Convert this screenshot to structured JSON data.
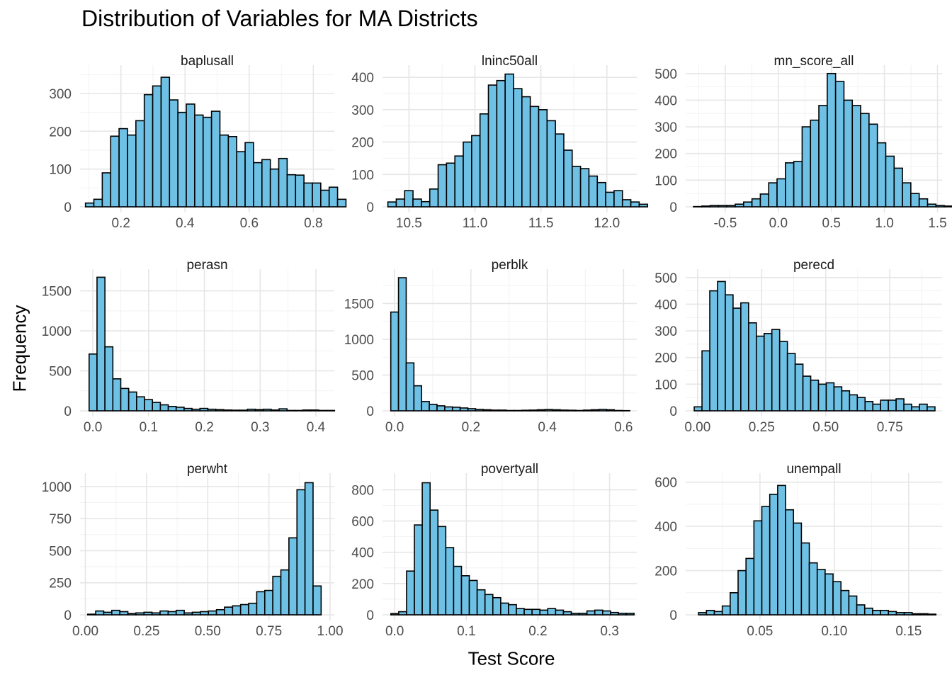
{
  "page": {
    "title": "Distribution of Variables for MA Districts",
    "xlabel": "Test Score",
    "ylabel": "Frequency"
  },
  "colors": {
    "bar_fill": "#6EC1E4",
    "bar_stroke": "#000000",
    "grid_major": "#E6E6E6",
    "grid_minor": "#F2F2F2"
  },
  "chart_data": [
    {
      "type": "bar",
      "title": "baplusall",
      "xlim": [
        0.077,
        0.861
      ],
      "ylim": [
        0,
        360
      ],
      "xticks": [
        0.2,
        0.4,
        0.6,
        0.8
      ],
      "xtick_labels": [
        "0.2",
        "0.4",
        "0.6",
        "0.8"
      ],
      "yticks": [
        0,
        100,
        200,
        300
      ],
      "ytick_labels": [
        "0",
        "100",
        "200",
        "300"
      ],
      "bin_start": 0.0895,
      "bin_width": 0.0262,
      "values": [
        10,
        20,
        90,
        187,
        207,
        190,
        228,
        297,
        320,
        343,
        283,
        250,
        272,
        243,
        237,
        253,
        190,
        186,
        146,
        170,
        117,
        125,
        100,
        128,
        85,
        84,
        63,
        63,
        44,
        52,
        20
      ]
    },
    {
      "type": "bar",
      "title": "lninc50all",
      "xlim": [
        10.31,
        12.216
      ],
      "ylim": [
        0,
        420
      ],
      "xticks": [
        10.5,
        11.0,
        11.5,
        12.0
      ],
      "xtick_labels": [
        "10.5",
        "11.0",
        "11.5",
        "12.0"
      ],
      "yticks": [
        0,
        100,
        200,
        300,
        400
      ],
      "ytick_labels": [
        "0",
        "100",
        "200",
        "300",
        "400"
      ],
      "bin_start": 10.34,
      "bin_width": 0.0635,
      "values": [
        15,
        24,
        50,
        24,
        16,
        55,
        130,
        135,
        157,
        200,
        220,
        287,
        376,
        390,
        410,
        365,
        340,
        310,
        300,
        266,
        225,
        175,
        125,
        118,
        95,
        75,
        45,
        50,
        22,
        15,
        8
      ]
    },
    {
      "type": "bar",
      "title": "mn_score_all",
      "xlim": [
        -0.86,
        1.53
      ],
      "ylim": [
        0,
        510
      ],
      "xticks": [
        -0.5,
        0.0,
        0.5,
        1.0,
        1.5
      ],
      "xtick_labels": [
        "-0.5",
        "0.0",
        "0.5",
        "1.0",
        "1.5"
      ],
      "yticks": [
        0,
        100,
        200,
        300,
        400,
        500
      ],
      "ytick_labels": [
        "0",
        "100",
        "200",
        "300",
        "400",
        "500"
      ],
      "bin_start": -0.8,
      "bin_width": 0.0788,
      "values": [
        1,
        3,
        5,
        5,
        5,
        10,
        18,
        30,
        48,
        90,
        105,
        165,
        170,
        300,
        325,
        380,
        500,
        470,
        400,
        380,
        350,
        310,
        240,
        190,
        145,
        90,
        50,
        30,
        10,
        5,
        3
      ]
    },
    {
      "type": "bar",
      "title": "perasn",
      "xlim": [
        -0.0205,
        0.4305
      ],
      "ylim": [
        0,
        1700
      ],
      "xticks": [
        0.0,
        0.1,
        0.2,
        0.3,
        0.4
      ],
      "xtick_labels": [
        "0.0",
        "0.1",
        "0.2",
        "0.3",
        "0.4"
      ],
      "yticks": [
        0,
        500,
        1000,
        1500
      ],
      "ytick_labels": [
        "0",
        "500",
        "1000",
        "1500"
      ],
      "bin_start": -0.0068,
      "bin_width": 0.0142,
      "values": [
        710,
        1670,
        800,
        400,
        280,
        235,
        175,
        140,
        105,
        75,
        55,
        45,
        30,
        20,
        30,
        20,
        15,
        10,
        8,
        8,
        20,
        15,
        20,
        10,
        25,
        5,
        5,
        10,
        10,
        5,
        5
      ]
    },
    {
      "type": "bar",
      "title": "perblk",
      "xlim": [
        -0.028,
        0.631
      ],
      "ylim": [
        0,
        1900
      ],
      "xticks": [
        0.0,
        0.2,
        0.4,
        0.6
      ],
      "xtick_labels": [
        "0.0",
        "0.2",
        "0.4",
        "0.6"
      ],
      "yticks": [
        0,
        500,
        1000,
        1500
      ],
      "ytick_labels": [
        "0",
        "500",
        "1000",
        "1500"
      ],
      "bin_start": -0.01,
      "bin_width": 0.0202,
      "values": [
        1380,
        1860,
        670,
        350,
        130,
        90,
        70,
        55,
        50,
        40,
        30,
        20,
        15,
        10,
        10,
        5,
        5,
        8,
        10,
        15,
        18,
        15,
        10,
        8,
        5,
        10,
        15,
        20,
        15,
        5,
        3
      ]
    },
    {
      "type": "bar",
      "title": "perecd",
      "xlim": [
        -0.041,
        0.9485
      ],
      "ylim": [
        0,
        510
      ],
      "xticks": [
        0.0,
        0.25,
        0.5,
        0.75
      ],
      "xtick_labels": [
        "0.00",
        "0.25",
        "0.50",
        "0.75"
      ],
      "yticks": [
        0,
        100,
        200,
        300,
        400,
        500
      ],
      "ytick_labels": [
        "0",
        "100",
        "200",
        "300",
        "400",
        "500"
      ],
      "bin_start": -0.0131,
      "bin_width": 0.0303,
      "values": [
        15,
        225,
        450,
        485,
        435,
        385,
        405,
        330,
        280,
        290,
        305,
        260,
        215,
        175,
        130,
        115,
        100,
        105,
        90,
        75,
        60,
        50,
        35,
        25,
        40,
        40,
        45,
        25,
        15,
        25,
        15
      ]
    },
    {
      "type": "bar",
      "title": "perwht",
      "xlim": [
        -0.016,
        1.0115
      ],
      "ylim": [
        0,
        1060
      ],
      "xticks": [
        0.0,
        0.25,
        0.5,
        0.75,
        1.0
      ],
      "xtick_labels": [
        "0.00",
        "0.25",
        "0.50",
        "0.75",
        "1.00"
      ],
      "yticks": [
        0,
        250,
        500,
        750,
        1000
      ],
      "ytick_labels": [
        "0",
        "250",
        "500",
        "750",
        "1000"
      ],
      "bin_start": 0.0092,
      "bin_width": 0.0329,
      "values": [
        5,
        30,
        20,
        35,
        25,
        10,
        15,
        20,
        15,
        30,
        25,
        35,
        15,
        20,
        25,
        30,
        40,
        60,
        70,
        80,
        90,
        180,
        190,
        300,
        350,
        600,
        975,
        1030,
        225
      ]
    },
    {
      "type": "bar",
      "title": "povertyall",
      "xlim": [
        -0.015,
        0.336
      ],
      "ylim": [
        0,
        870
      ],
      "xticks": [
        0.0,
        0.1,
        0.2,
        0.3
      ],
      "xtick_labels": [
        "0.0",
        "0.1",
        "0.2",
        "0.3"
      ],
      "yticks": [
        0,
        200,
        400,
        600,
        800
      ],
      "ytick_labels": [
        "0",
        "200",
        "400",
        "600",
        "800"
      ],
      "bin_start": -0.0053,
      "bin_width": 0.01095,
      "values": [
        8,
        20,
        280,
        575,
        845,
        670,
        565,
        430,
        310,
        250,
        220,
        160,
        130,
        110,
        75,
        65,
        40,
        35,
        35,
        30,
        40,
        30,
        20,
        10,
        10,
        25,
        30,
        25,
        15,
        10,
        10
      ]
    },
    {
      "type": "bar",
      "title": "unempall",
      "xlim": [
        0.001,
        0.1715
      ],
      "ylim": [
        0,
        615
      ],
      "xticks": [
        0.05,
        0.1,
        0.15
      ],
      "xtick_labels": [
        "0.05",
        "0.10",
        "0.15"
      ],
      "yticks": [
        0,
        200,
        400,
        600
      ],
      "ytick_labels": [
        "0",
        "200",
        "400",
        "600"
      ],
      "bin_start": 0.0087,
      "bin_width": 0.00532,
      "values": [
        10,
        20,
        15,
        40,
        100,
        200,
        255,
        425,
        490,
        545,
        585,
        475,
        415,
        325,
        235,
        205,
        185,
        150,
        110,
        85,
        45,
        30,
        20,
        20,
        15,
        10,
        10,
        5,
        5,
        3
      ]
    }
  ]
}
